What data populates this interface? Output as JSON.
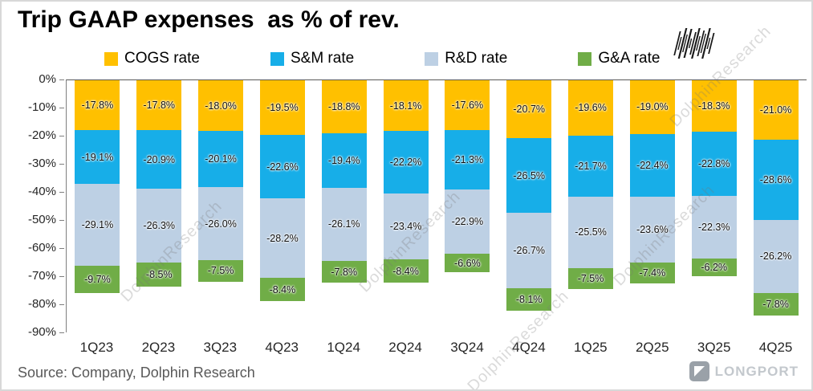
{
  "title": "Trip GAAP expenses  as % of rev.",
  "source": "Source: Company, Dolphin Research",
  "watermark": "DolphinResearch",
  "logo": {
    "text": "LONGPORT"
  },
  "chart_data": {
    "type": "bar",
    "stacked": true,
    "title": "Trip GAAP expenses  as % of rev.",
    "categories": [
      "1Q23",
      "2Q23",
      "3Q23",
      "4Q23",
      "1Q24",
      "2Q24",
      "3Q24",
      "4Q24",
      "1Q25",
      "2Q25",
      "3Q25",
      "4Q25"
    ],
    "series": [
      {
        "name": "COGS rate",
        "color": "#FFC000",
        "values": [
          -17.8,
          -17.8,
          -18.0,
          -19.5,
          -18.8,
          -18.1,
          -17.6,
          -20.7,
          -19.6,
          -19.0,
          -18.3,
          -21.0
        ]
      },
      {
        "name": "S&M rate",
        "color": "#17AEE8",
        "values": [
          -19.1,
          -20.9,
          -20.1,
          -22.6,
          -19.4,
          -22.2,
          -21.3,
          -26.5,
          -21.7,
          -22.4,
          -22.8,
          -28.6
        ]
      },
      {
        "name": "R&D rate",
        "color": "#BDD0E4",
        "values": [
          -29.1,
          -26.3,
          -26.0,
          -28.2,
          -26.1,
          -23.4,
          -22.9,
          -26.7,
          -25.5,
          -23.6,
          -22.3,
          -26.2
        ]
      },
      {
        "name": "G&A rate",
        "color": "#70AD47",
        "values": [
          -9.7,
          -8.5,
          -7.5,
          -8.4,
          -7.8,
          -8.4,
          -6.6,
          -8.1,
          -7.5,
          -7.4,
          -6.2,
          -7.8
        ]
      }
    ],
    "ylim": [
      0,
      -90
    ],
    "yticks": [
      "0%",
      "-10%",
      "-20%",
      "-30%",
      "-40%",
      "-50%",
      "-60%",
      "-70%",
      "-80%",
      "-90%"
    ],
    "legend_position": "top",
    "grid": false
  }
}
